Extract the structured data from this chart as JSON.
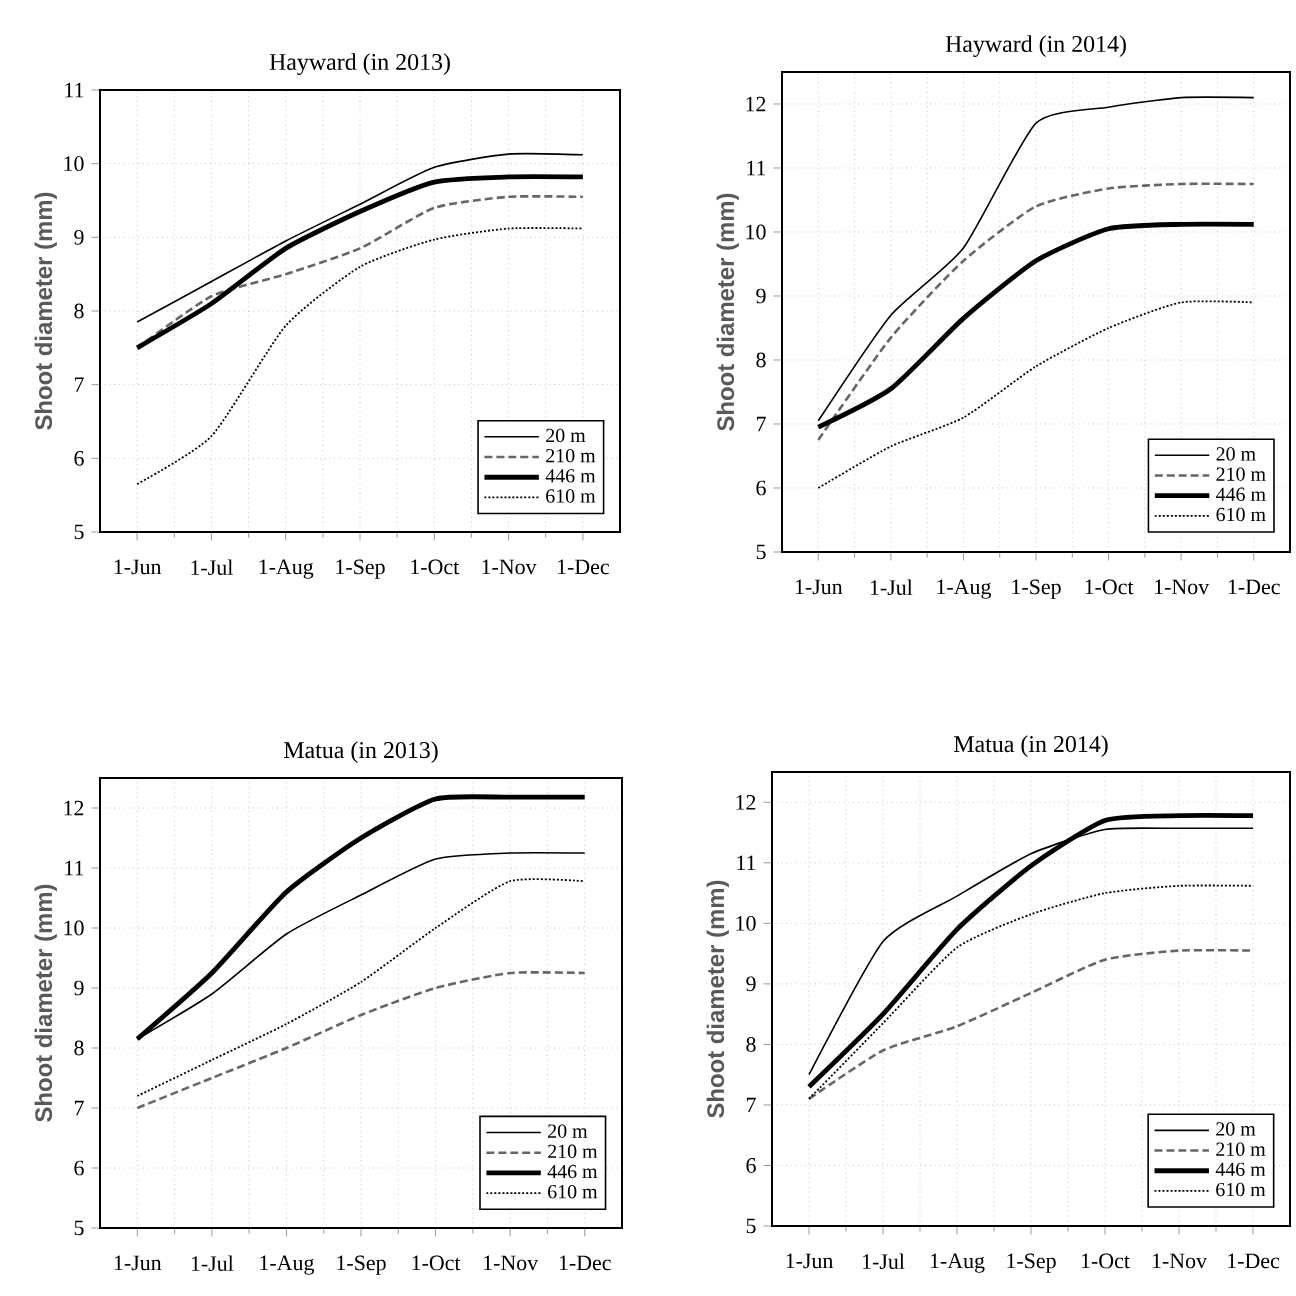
{
  "chart_data": [
    {
      "type": "line",
      "title": "Hayward (in 2013)",
      "ylabel": "Shoot diameter (mm)",
      "categories": [
        "1-Jun",
        "1-Jul",
        "1-Aug",
        "1-Sep",
        "1-Oct",
        "1-Nov",
        "1-Dec"
      ],
      "ylim": [
        5,
        11
      ],
      "yticks": [
        5,
        6,
        7,
        8,
        9,
        10,
        11
      ],
      "grid": true,
      "legend": "bottom right",
      "series": [
        {
          "name": "20 m",
          "color": "#000000",
          "line_style": "solid",
          "values": [
            7.85,
            8.4,
            8.95,
            9.45,
            9.95,
            10.13,
            10.12
          ]
        },
        {
          "name": "210 m",
          "color": "#666666",
          "line_style": "dashed",
          "values": [
            7.5,
            8.2,
            8.5,
            8.85,
            9.4,
            9.55,
            9.55
          ]
        },
        {
          "name": "446 m",
          "color": "#000000",
          "line_style": "solid",
          "values": [
            7.5,
            8.1,
            8.85,
            9.35,
            9.75,
            9.82,
            9.82
          ]
        },
        {
          "name": "610 m",
          "color": "#000000",
          "line_style": "dotted",
          "values": [
            5.65,
            6.3,
            7.8,
            8.6,
            8.97,
            9.12,
            9.12
          ]
        }
      ]
    },
    {
      "type": "line",
      "title": "Hayward (in 2014)",
      "ylabel": "Shoot diameter (mm)",
      "categories": [
        "1-Jun",
        "1-Jul",
        "1-Aug",
        "1-Sep",
        "1-Oct",
        "1-Nov",
        "1-Dec"
      ],
      "ylim": [
        5,
        12.5
      ],
      "yticks": [
        5,
        6,
        7,
        8,
        9,
        10,
        11,
        12
      ],
      "grid": true,
      "legend": "bottom right",
      "series": [
        {
          "name": "20 m",
          "color": "#000000",
          "line_style": "solid",
          "values": [
            7.05,
            8.7,
            9.75,
            11.7,
            11.95,
            12.1,
            12.1
          ]
        },
        {
          "name": "210 m",
          "color": "#666666",
          "line_style": "dashed",
          "values": [
            6.75,
            8.35,
            9.55,
            10.4,
            10.68,
            10.75,
            10.75
          ]
        },
        {
          "name": "446 m",
          "color": "#000000",
          "line_style": "solid",
          "values": [
            6.95,
            7.55,
            8.65,
            9.55,
            10.05,
            10.12,
            10.12
          ]
        },
        {
          "name": "610 m",
          "color": "#000000",
          "line_style": "dotted",
          "values": [
            6.0,
            6.65,
            7.1,
            7.9,
            8.5,
            8.9,
            8.9
          ]
        }
      ]
    },
    {
      "type": "line",
      "title": "Matua (in 2013)",
      "ylabel": "Shoot diameter (mm)",
      "categories": [
        "1-Jun",
        "1-Jul",
        "1-Aug",
        "1-Sep",
        "1-Oct",
        "1-Nov",
        "1-Dec"
      ],
      "ylim": [
        5,
        12.5
      ],
      "yticks": [
        5,
        6,
        7,
        8,
        9,
        10,
        11,
        12
      ],
      "grid": true,
      "legend": "bottom right",
      "series": [
        {
          "name": "20 m",
          "color": "#000000",
          "line_style": "solid",
          "values": [
            8.15,
            8.9,
            9.9,
            10.55,
            11.15,
            11.25,
            11.25
          ]
        },
        {
          "name": "210 m",
          "color": "#666666",
          "line_style": "dashed",
          "values": [
            7.0,
            7.5,
            8.0,
            8.55,
            9.0,
            9.25,
            9.25
          ]
        },
        {
          "name": "446 m",
          "color": "#000000",
          "line_style": "solid",
          "values": [
            8.15,
            9.25,
            10.6,
            11.5,
            12.15,
            12.18,
            12.18
          ]
        },
        {
          "name": "610 m",
          "color": "#000000",
          "line_style": "dotted",
          "values": [
            7.2,
            7.8,
            8.4,
            9.1,
            10.0,
            10.78,
            10.78
          ]
        }
      ]
    },
    {
      "type": "line",
      "title": "Matua (in 2014)",
      "ylabel": "Shoot diameter (mm)",
      "categories": [
        "1-Jun",
        "1-Jul",
        "1-Aug",
        "1-Sep",
        "1-Oct",
        "1-Nov",
        "1-Dec"
      ],
      "ylim": [
        5,
        12.5
      ],
      "yticks": [
        5,
        6,
        7,
        8,
        9,
        10,
        11,
        12
      ],
      "grid": true,
      "legend": "bottom right",
      "series": [
        {
          "name": "20 m",
          "color": "#000000",
          "line_style": "solid",
          "values": [
            7.5,
            9.7,
            10.45,
            11.15,
            11.55,
            11.57,
            11.57
          ]
        },
        {
          "name": "210 m",
          "color": "#666666",
          "line_style": "dashed",
          "values": [
            7.1,
            7.9,
            8.3,
            8.85,
            9.4,
            9.55,
            9.55
          ]
        },
        {
          "name": "446 m",
          "color": "#000000",
          "line_style": "solid",
          "values": [
            7.3,
            8.5,
            9.9,
            10.95,
            11.7,
            11.78,
            11.78
          ]
        },
        {
          "name": "610 m",
          "color": "#000000",
          "line_style": "dotted",
          "values": [
            7.1,
            8.35,
            9.6,
            10.15,
            10.5,
            10.62,
            10.62
          ]
        }
      ]
    }
  ]
}
